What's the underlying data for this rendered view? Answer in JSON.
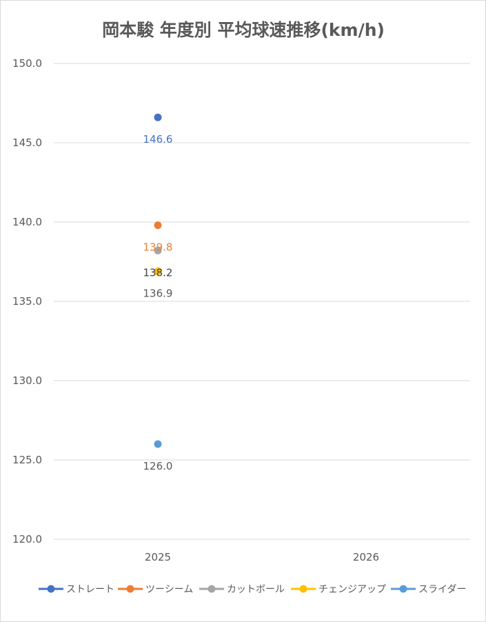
{
  "chart_data": {
    "type": "scatter",
    "title": "岡本駿 年度別 平均球速推移(km/h)",
    "xlabel": "",
    "ylabel": "",
    "categories": [
      "2025",
      "2026"
    ],
    "ylim": [
      120.0,
      150.0
    ],
    "yticks": [
      "120.0",
      "125.0",
      "130.0",
      "135.0",
      "140.0",
      "145.0",
      "150.0"
    ],
    "grid": true,
    "legend_position": "bottom",
    "series": [
      {
        "name": "ストレート",
        "color": "#4472C4",
        "label_color": "#4472C4",
        "values": [
          146.6,
          null
        ],
        "labels": [
          "146.6",
          ""
        ]
      },
      {
        "name": "ツーシーム",
        "color": "#ED7D31",
        "label_color": "#ED7D31",
        "values": [
          139.8,
          null
        ],
        "labels": [
          "139.8",
          ""
        ]
      },
      {
        "name": "カットボール",
        "color": "#A5A5A5",
        "label_color": "#404040",
        "values": [
          138.2,
          null
        ],
        "labels": [
          "138.2",
          ""
        ]
      },
      {
        "name": "チェンジアップ",
        "color": "#FFC000",
        "label_color": "#595959",
        "values": [
          136.9,
          null
        ],
        "labels": [
          "136.9",
          ""
        ]
      },
      {
        "name": "スライダー",
        "color": "#5B9BD5",
        "label_color": "#595959",
        "values": [
          126.0,
          null
        ],
        "labels": [
          "126.0",
          ""
        ]
      }
    ]
  }
}
